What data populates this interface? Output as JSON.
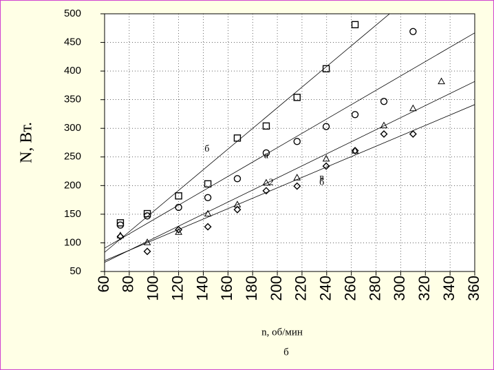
{
  "chart_data": {
    "type": "scatter",
    "xlabel": "n, об/мин",
    "ylabel": "N, Вт.",
    "caption": "б",
    "xlim": [
      60,
      360
    ],
    "ylim": [
      50,
      500
    ],
    "xticks": [
      60,
      80,
      100,
      120,
      140,
      160,
      180,
      200,
      220,
      240,
      260,
      280,
      300,
      320,
      340,
      360
    ],
    "yticks": [
      50,
      100,
      150,
      200,
      250,
      300,
      350,
      400,
      450,
      500
    ],
    "grid": true,
    "fit_lines": true,
    "series": [
      {
        "marker": "square",
        "color": "#000000",
        "x": [
          72.8,
          94.6,
          120,
          143.7,
          167.6,
          191,
          216,
          239.6,
          263
        ],
        "values": [
          135,
          151,
          182,
          203,
          283,
          304,
          354,
          404,
          481
        ]
      },
      {
        "marker": "circle",
        "color": "#000000",
        "x": [
          72.8,
          94.6,
          120,
          143.7,
          167.6,
          191,
          216,
          239.6,
          263,
          286.4,
          310
        ],
        "values": [
          131,
          147,
          162,
          179,
          212,
          257,
          277,
          303,
          324,
          347,
          469
        ]
      },
      {
        "marker": "triangle",
        "color": "#000000",
        "x": [
          72.8,
          94.6,
          120,
          143.7,
          167.6,
          191,
          216,
          239.6,
          263,
          286.4,
          310,
          333
        ],
        "values": [
          113,
          101,
          119,
          151,
          167,
          205,
          214,
          247,
          261,
          305,
          335,
          382
        ]
      },
      {
        "marker": "diamond",
        "color": "#000000",
        "x": [
          72.8,
          94.6,
          120,
          143.7,
          167.6,
          191,
          216,
          239.6,
          263,
          286.4,
          310
        ],
        "values": [
          111,
          85,
          123,
          128,
          158,
          191,
          199,
          234,
          261,
          290,
          290
        ]
      }
    ],
    "annotations": [
      {
        "text": "б",
        "x": 143,
        "y": 263
      },
      {
        "text": "а",
        "x": 191,
        "y": 252
      },
      {
        "text": "2",
        "x": 195,
        "y": 205
      },
      {
        "text": "в",
        "x": 236,
        "y": 213
      },
      {
        "text": "б",
        "x": 236,
        "y": 205
      }
    ]
  }
}
